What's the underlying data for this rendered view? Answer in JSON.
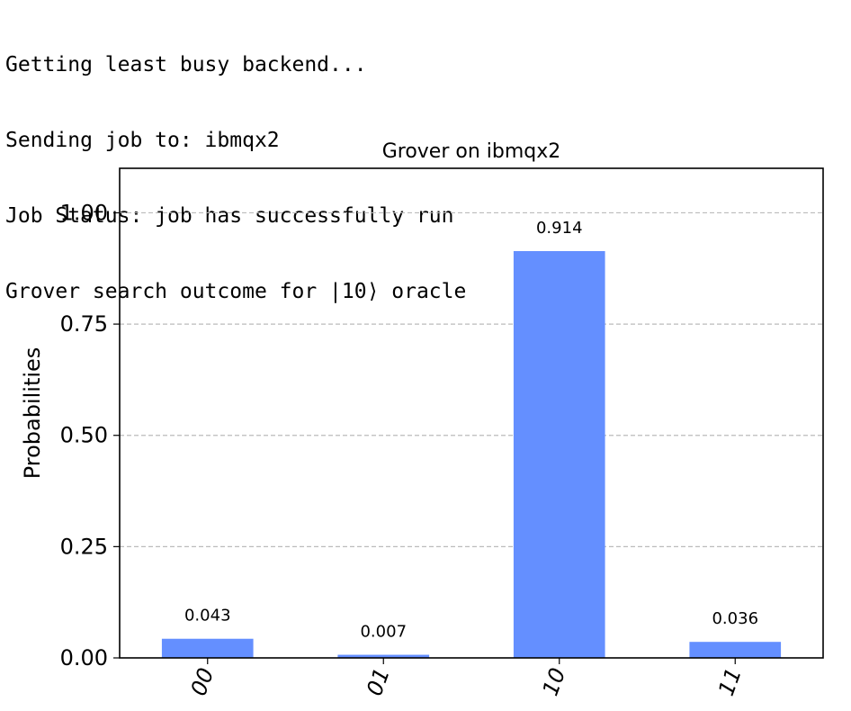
{
  "console": {
    "lines": [
      "Getting least busy backend...",
      "Sending job to: ibmqx2",
      "Job Status: job has successfully run",
      "Grover search outcome for |10⟩ oracle"
    ]
  },
  "chart_data": {
    "type": "bar",
    "title": "Grover on ibmqx2",
    "xlabel": "",
    "ylabel": "Probabilities",
    "categories": [
      "00",
      "01",
      "10",
      "11"
    ],
    "values": [
      0.043,
      0.007,
      0.914,
      0.036
    ],
    "data_labels": [
      "0.043",
      "0.007",
      "0.914",
      "0.036"
    ],
    "ylim": [
      0,
      1.1
    ],
    "yticks": [
      0.0,
      0.25,
      0.5,
      0.75,
      1.0
    ],
    "ytick_labels": [
      "0.00",
      "0.25",
      "0.50",
      "0.75",
      "1.00"
    ],
    "grid": "y dashed",
    "bar_color": "#648fff",
    "grid_color": "#bbbbbb"
  }
}
